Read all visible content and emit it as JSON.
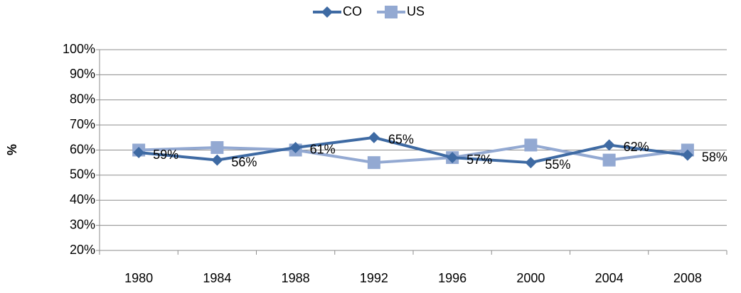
{
  "chart_data": {
    "type": "line",
    "y_label": "%",
    "categories": [
      "1980",
      "1984",
      "1988",
      "1992",
      "1996",
      "2000",
      "2004",
      "2008"
    ],
    "series": [
      {
        "name": "CO",
        "color": "#3e6aa3",
        "marker": "diamond",
        "values": [
          59,
          56,
          61,
          65,
          57,
          55,
          62,
          58
        ],
        "value_labels": [
          "59%",
          "56%",
          "61%",
          "65%",
          "57%",
          "55%",
          "62%",
          "58%"
        ]
      },
      {
        "name": "US",
        "color": "#93a9d2",
        "marker": "square",
        "values": [
          60,
          61,
          60,
          55,
          57,
          62,
          56,
          60
        ]
      }
    ],
    "ylim": [
      20,
      100
    ],
    "yticks": [
      {
        "value": 20,
        "label": "20%"
      },
      {
        "value": 30,
        "label": "30%"
      },
      {
        "value": 40,
        "label": "40%"
      },
      {
        "value": 50,
        "label": "50%"
      },
      {
        "value": 60,
        "label": "60%"
      },
      {
        "value": 70,
        "label": "70%"
      },
      {
        "value": 80,
        "label": "80%"
      },
      {
        "value": 90,
        "label": "90%"
      },
      {
        "value": 100,
        "label": "100%"
      }
    ],
    "grid": true,
    "legend": "top"
  }
}
